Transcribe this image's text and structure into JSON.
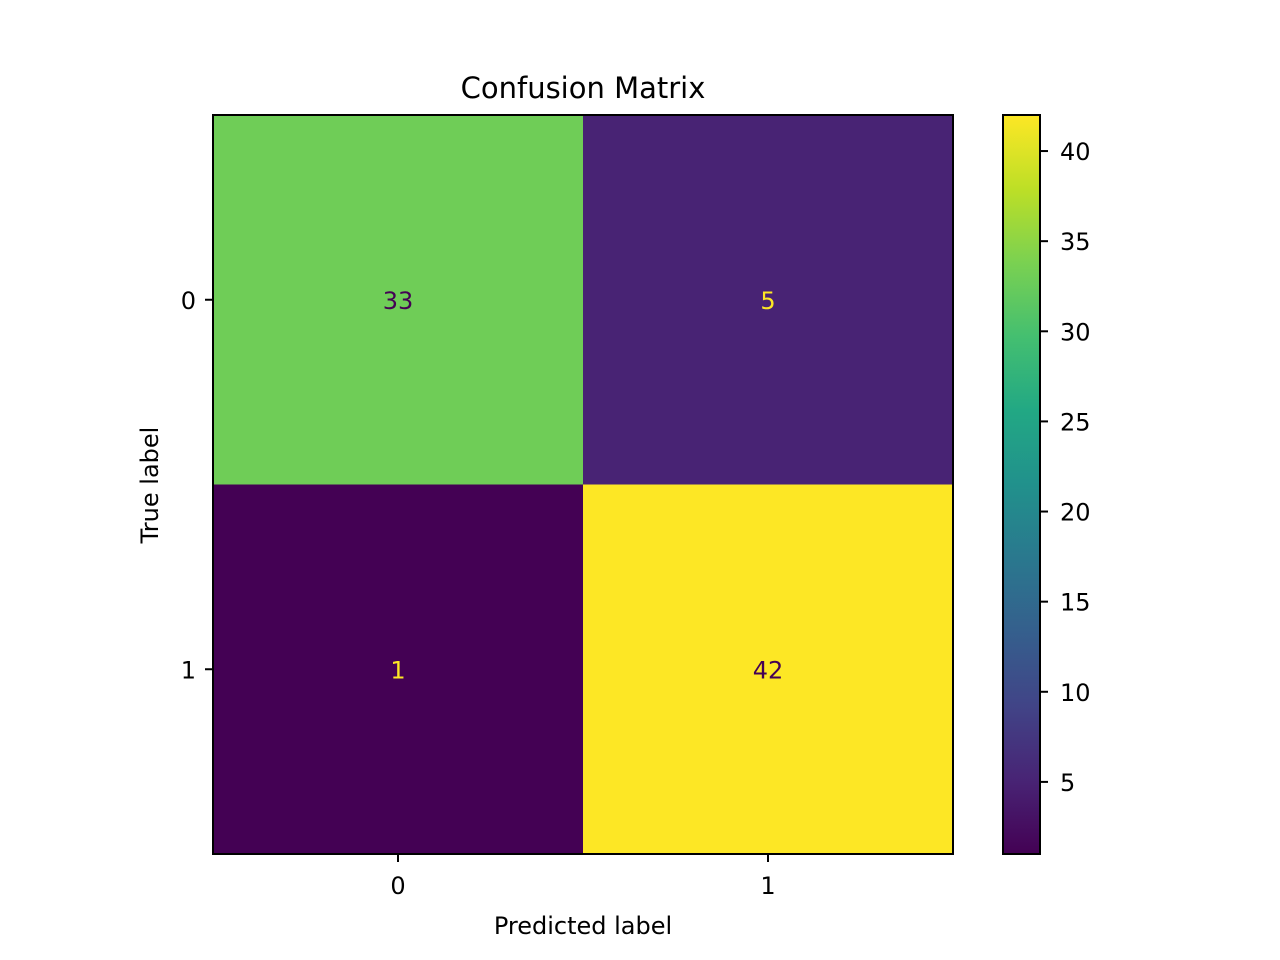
{
  "chart_data": {
    "type": "heatmap",
    "title": "Confusion Matrix",
    "xlabel": "Predicted label",
    "ylabel": "True label",
    "x_categories": [
      "0",
      "1"
    ],
    "y_categories": [
      "0",
      "1"
    ],
    "values": [
      [
        33,
        5
      ],
      [
        1,
        42
      ]
    ],
    "colormap": "viridis",
    "colorbar": {
      "range": [
        1,
        42
      ],
      "ticks": [
        5,
        10,
        15,
        20,
        25,
        30,
        35,
        40
      ]
    },
    "colors": {
      "low_text": "#fde725",
      "high_text": "#440154"
    }
  }
}
